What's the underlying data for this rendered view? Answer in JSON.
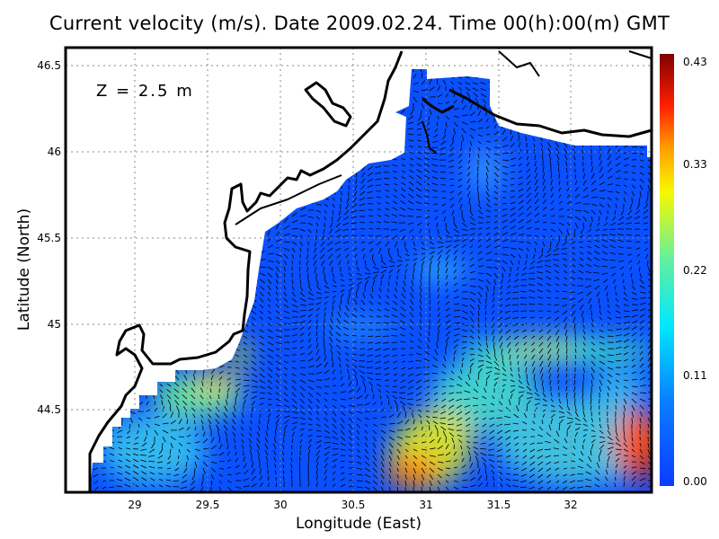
{
  "title": "Current velocity (m/s). Date 2009.02.24. Time 00(h):00(m) GMT",
  "depth_label": "Z = 2.5 m",
  "x_axis": {
    "label": "Longitude (East)",
    "ticks": [
      "29",
      "29.5",
      "30",
      "30.5",
      "31",
      "31.5",
      "32"
    ],
    "range": [
      28.52,
      32.55
    ]
  },
  "y_axis": {
    "label": "Latitude (North)",
    "ticks": [
      "44.5",
      "45",
      "45.5",
      "46",
      "46.5"
    ],
    "range": [
      44.02,
      46.58
    ]
  },
  "colorbar": {
    "ticks": [
      "0.43",
      "0.33",
      "0.22",
      "0.11",
      "0.00"
    ],
    "range": [
      0.0,
      0.43
    ],
    "colors": [
      "#0a3cff",
      "#0a6cff",
      "#00c8ff",
      "#40e0b0",
      "#a0f050",
      "#f8f800",
      "#ffa000",
      "#ff3000",
      "#e00000",
      "#800000"
    ]
  },
  "grid": "dotted",
  "coastline_color": "#000000",
  "land_color": "#ffffff"
}
